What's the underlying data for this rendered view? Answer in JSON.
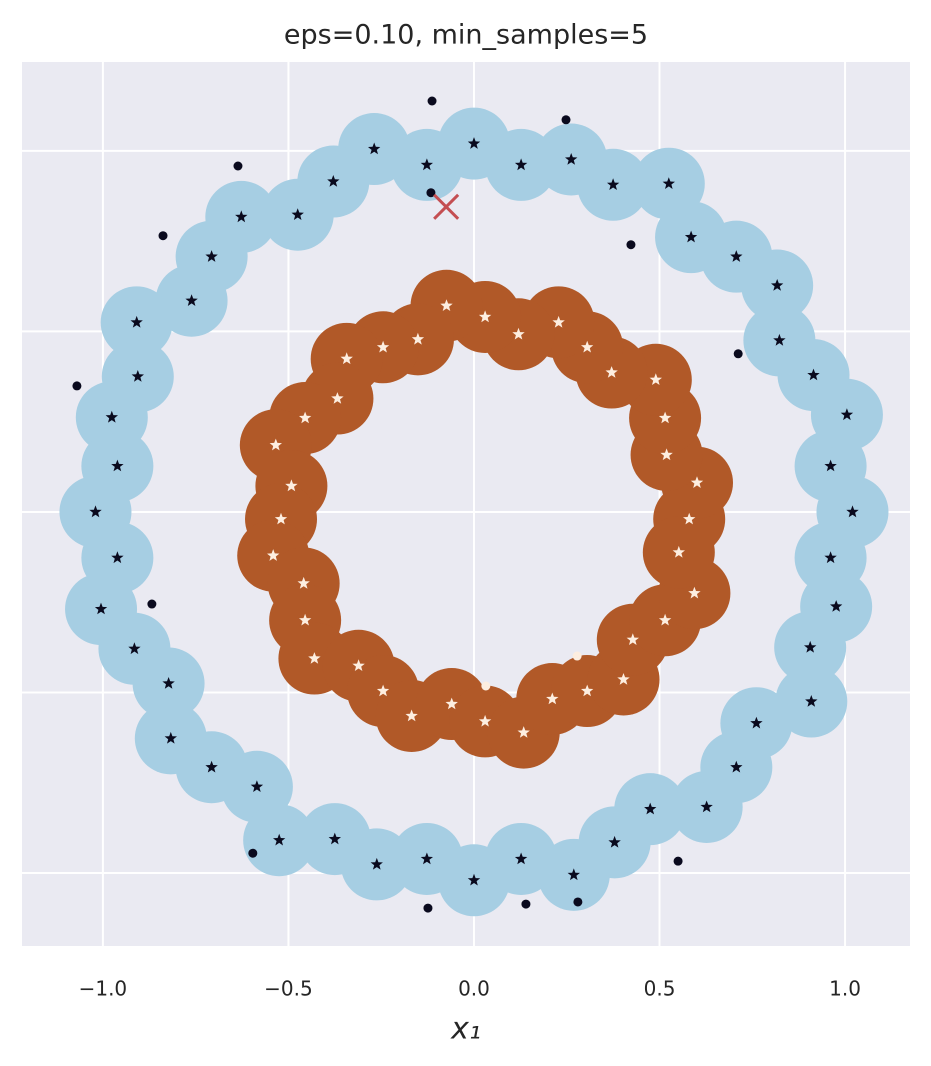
{
  "chart_data": {
    "type": "scatter",
    "title": "eps=0.10, min_samples=5",
    "xlabel": "x₁",
    "xlim": [
      -1.218,
      1.175
    ],
    "ylim": [
      -1.202,
      1.246
    ],
    "xticks": [
      {
        "value": -1.0,
        "label": "−1.0"
      },
      {
        "value": -0.5,
        "label": "−0.5"
      },
      {
        "value": 0.0,
        "label": "0.0"
      },
      {
        "value": 0.5,
        "label": "0.5"
      },
      {
        "value": 1.0,
        "label": "1.0"
      }
    ],
    "yticks": [
      -1.0,
      -0.5,
      0.0,
      0.5,
      1.0
    ],
    "grid": true,
    "series": [
      {
        "marker": "star",
        "color": "#0a0a1e",
        "blob_color": "#a6cee3",
        "x": [
          1.02,
          0.961,
          1.005,
          0.915,
          0.823,
          0.817,
          0.707,
          0.585,
          0.525,
          0.375,
          0.262,
          0.127,
          0.0,
          -0.127,
          -0.269,
          -0.379,
          -0.475,
          -0.627,
          -0.707,
          -0.761,
          -0.909,
          -0.906,
          -0.976,
          -0.961,
          -1.02,
          -0.961,
          -1.005,
          -0.915,
          -0.823,
          -0.817,
          -0.707,
          -0.585,
          -0.525,
          -0.375,
          -0.262,
          -0.127,
          0.0,
          0.127,
          0.269,
          0.379,
          0.475,
          0.627,
          0.707,
          0.761,
          0.909,
          0.906,
          0.976,
          0.961
        ],
        "y": [
          0.0,
          0.127,
          0.269,
          0.379,
          0.475,
          0.627,
          0.707,
          0.761,
          0.909,
          0.906,
          0.976,
          0.961,
          1.02,
          0.961,
          1.005,
          0.915,
          0.823,
          0.817,
          0.707,
          0.585,
          0.525,
          0.375,
          0.262,
          0.127,
          0.0,
          -0.127,
          -0.269,
          -0.379,
          -0.475,
          -0.627,
          -0.707,
          -0.761,
          -0.909,
          -0.906,
          -0.976,
          -0.961,
          -1.02,
          -0.961,
          -1.005,
          -0.915,
          -0.823,
          -0.817,
          -0.707,
          -0.585,
          -0.525,
          -0.375,
          -0.262,
          -0.127
        ]
      },
      {
        "marker": "star",
        "color": "#fdeee0",
        "blob_color": "#b15928",
        "x": [
          0.58,
          0.601,
          0.519,
          0.515,
          0.49,
          0.371,
          0.305,
          0.228,
          0.12,
          0.03,
          -0.074,
          -0.151,
          -0.245,
          -0.343,
          -0.368,
          -0.455,
          -0.534,
          -0.492,
          -0.52,
          -0.541,
          -0.459,
          -0.455,
          -0.43,
          -0.311,
          -0.245,
          -0.168,
          -0.06,
          0.03,
          0.134,
          0.211,
          0.305,
          0.403,
          0.428,
          0.515,
          0.594,
          0.552
        ],
        "y": [
          -0.02,
          0.081,
          0.158,
          0.26,
          0.366,
          0.386,
          0.456,
          0.525,
          0.492,
          0.54,
          0.571,
          0.478,
          0.456,
          0.424,
          0.314,
          0.26,
          0.185,
          0.072,
          -0.02,
          -0.121,
          -0.198,
          -0.3,
          -0.406,
          -0.426,
          -0.496,
          -0.565,
          -0.532,
          -0.58,
          -0.611,
          -0.518,
          -0.496,
          -0.464,
          -0.354,
          -0.3,
          -0.225,
          -0.112
        ]
      },
      {
        "marker": "dot",
        "color": "#0a0a1e",
        "x": [
          -0.113,
          0.248,
          -0.636,
          -0.116,
          -0.838,
          0.423,
          0.712,
          -1.07,
          -0.868,
          -0.596,
          0.55,
          -0.124,
          0.14,
          0.28
        ],
        "y": [
          1.138,
          1.086,
          0.958,
          0.884,
          0.765,
          0.74,
          0.438,
          0.349,
          -0.255,
          -0.945,
          -0.967,
          -1.097,
          -1.086,
          -1.08
        ]
      },
      {
        "marker": "dot",
        "color": "#fdeee0",
        "x": [
          0.278,
          0.032
        ],
        "y": [
          -0.399,
          -0.482
        ]
      },
      {
        "marker": "x",
        "color": "#c44e52",
        "x": [
          -0.075
        ],
        "y": [
          0.845
        ]
      }
    ]
  }
}
